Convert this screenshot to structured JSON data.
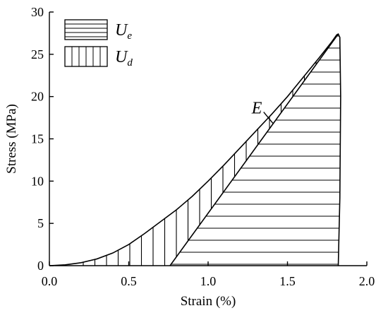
{
  "chart_data": {
    "type": "area",
    "xlabel": "Strain (%)",
    "ylabel": "Stress (MPa)",
    "xlim": [
      0.0,
      2.0
    ],
    "ylim": [
      0,
      30
    ],
    "xticks": [
      0.0,
      0.5,
      1.0,
      1.5,
      2.0
    ],
    "xtick_labels": [
      "0.0",
      "0.5",
      "1.0",
      "1.5",
      "2.0"
    ],
    "yticks": [
      0,
      5,
      10,
      15,
      20,
      25,
      30
    ],
    "ytick_labels": [
      "0",
      "5",
      "10",
      "15",
      "20",
      "25",
      "30"
    ],
    "grid": false,
    "legend_position": "top-left",
    "legend": [
      {
        "base": "U",
        "sub": "e",
        "hatch": "horizontal"
      },
      {
        "base": "U",
        "sub": "d",
        "hatch": "vertical"
      }
    ],
    "series": [
      {
        "x": [
          0.0,
          0.1,
          0.2,
          0.3,
          0.4,
          0.5,
          0.6,
          0.7,
          0.8,
          0.9,
          1.0,
          1.1,
          1.2,
          1.3,
          1.4,
          1.5,
          1.6,
          1.7,
          1.78,
          1.81,
          1.82,
          1.83,
          1.835,
          1.83,
          1.82
        ],
        "y": [
          0.0,
          0.1,
          0.35,
          0.8,
          1.5,
          2.5,
          3.8,
          5.2,
          6.6,
          8.2,
          10.0,
          11.9,
          13.9,
          15.9,
          17.9,
          20.0,
          22.3,
          24.6,
          26.5,
          27.3,
          27.4,
          27.0,
          20.0,
          8.0,
          0.0
        ]
      },
      {
        "x": [
          0.76,
          1.82
        ],
        "y": [
          0,
          27.4
        ]
      }
    ],
    "annotations": [
      {
        "text": "E",
        "x": 1.31,
        "y": 18.5,
        "arrow_to": [
          1.41,
          16.8
        ]
      }
    ]
  }
}
